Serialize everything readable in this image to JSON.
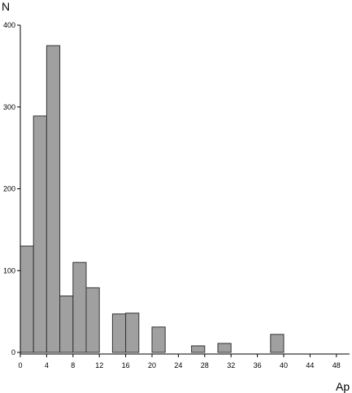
{
  "chart_data": {
    "type": "bar",
    "title": "",
    "xlabel": "Ap",
    "ylabel": "N",
    "x_tick_labels": [
      "0",
      "4",
      "8",
      "12",
      "16",
      "20",
      "24",
      "28",
      "32",
      "36",
      "40",
      "44",
      "48"
    ],
    "y_tick_labels": [
      "0",
      "100",
      "200",
      "300",
      "400"
    ],
    "xlim": [
      0,
      50
    ],
    "ylim": [
      0,
      400
    ],
    "bin_width": 2,
    "bins": [
      {
        "x_start": 0,
        "value": 130
      },
      {
        "x_start": 2,
        "value": 289
      },
      {
        "x_start": 4,
        "value": 375
      },
      {
        "x_start": 6,
        "value": 69
      },
      {
        "x_start": 8,
        "value": 110
      },
      {
        "x_start": 10,
        "value": 79
      },
      {
        "x_start": 14,
        "value": 47
      },
      {
        "x_start": 16,
        "value": 48
      },
      {
        "x_start": 20,
        "value": 31
      },
      {
        "x_start": 26,
        "value": 8
      },
      {
        "x_start": 30,
        "value": 11
      },
      {
        "x_start": 38,
        "value": 22
      }
    ],
    "bar_color": "#a0a0a0",
    "grid": false,
    "legend": "none"
  }
}
